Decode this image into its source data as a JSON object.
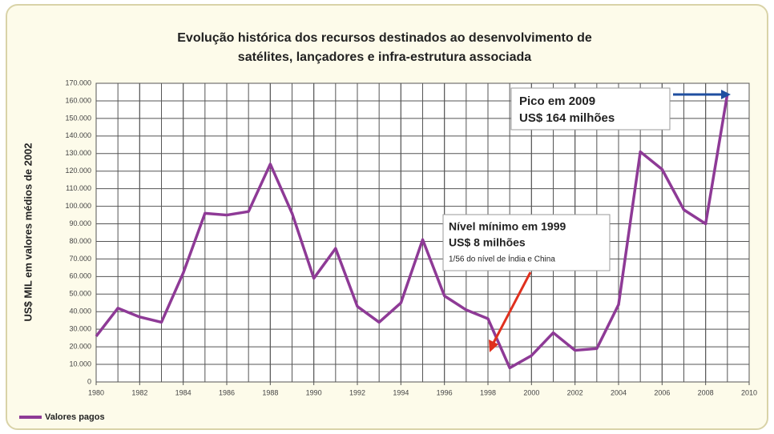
{
  "chart_data": {
    "type": "line",
    "title_lines": [
      "Evolução histórica dos recursos destinados ao desenvolvimento de",
      "satélites, lançadores e infra-estrutura associada"
    ],
    "y_label": "US$ MIL em valores médios de 2002",
    "x": [
      1980,
      1981,
      1982,
      1983,
      1984,
      1985,
      1986,
      1987,
      1988,
      1989,
      1990,
      1991,
      1992,
      1993,
      1994,
      1995,
      1996,
      1997,
      1998,
      1999,
      2000,
      2001,
      2002,
      2003,
      2004,
      2005,
      2006,
      2007,
      2008,
      2009
    ],
    "series": [
      {
        "name": "Valores pagos",
        "color": "#8e3a96",
        "values": [
          26000,
          42000,
          37000,
          34000,
          62000,
          96000,
          95000,
          97000,
          124000,
          96000,
          59000,
          76000,
          43000,
          34000,
          45000,
          81000,
          49000,
          41000,
          36000,
          8000,
          15000,
          28000,
          18000,
          19000,
          44000,
          131000,
          121000,
          98000,
          90000,
          164000
        ]
      }
    ],
    "xlim": [
      1980,
      2010
    ],
    "xticks": [
      1980,
      1982,
      1984,
      1986,
      1988,
      1990,
      1992,
      1994,
      1996,
      1998,
      2000,
      2002,
      2004,
      2006,
      2008,
      2010
    ],
    "ylim": [
      0,
      170000
    ],
    "yticks": [
      0,
      {
        "value": 10000,
        "label": "10.000"
      },
      {
        "value": 20000,
        "label": "20.000"
      },
      {
        "value": 30000,
        "label": "30.000"
      },
      {
        "value": 40000,
        "label": "40.000"
      },
      {
        "value": 50000,
        "label": "50.000"
      },
      {
        "value": 60000,
        "label": "60.000"
      },
      {
        "value": 70000,
        "label": "70.000"
      },
      {
        "value": 80000,
        "label": "80.000"
      },
      {
        "value": 90000,
        "label": "90.000"
      },
      {
        "value": 100000,
        "label": "100.000"
      },
      {
        "value": 110000,
        "label": "110.000"
      },
      {
        "value": 120000,
        "label": "120.000"
      },
      {
        "value": 130000,
        "label": "130.000"
      },
      {
        "value": 140000,
        "label": "140.000"
      },
      {
        "value": 150000,
        "label": "150.000"
      },
      {
        "value": 160000,
        "label": "160.000"
      },
      {
        "value": 170000,
        "label": "170.000"
      }
    ],
    "grid": true,
    "legend": "bottom-left",
    "annotations": [
      {
        "lines": [
          "Pico em 2009",
          "US$ 164 milhões"
        ]
      },
      {
        "lines": [
          "Nível mínimo em 1999",
          "US$ 8 milhões",
          "1/56 do nível de Índia e China"
        ]
      }
    ]
  }
}
